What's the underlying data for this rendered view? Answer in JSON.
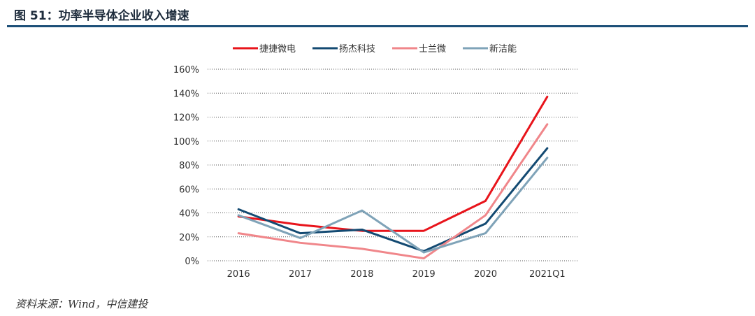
{
  "figure": {
    "title": "图 51：功率半导体企业收入增速",
    "source": "资料来源：Wind，中信建投"
  },
  "chart_data": {
    "type": "line",
    "title": "功率半导体企业收入增速",
    "xlabel": "",
    "ylabel": "",
    "categories": [
      "2016",
      "2017",
      "2018",
      "2019",
      "2020",
      "2021Q1"
    ],
    "ylim": [
      0,
      160
    ],
    "yticks": [
      0,
      20,
      40,
      60,
      80,
      100,
      120,
      140,
      160
    ],
    "ytick_labels": [
      "0%",
      "20%",
      "40%",
      "60%",
      "80%",
      "100%",
      "120%",
      "140%",
      "160%"
    ],
    "grid": "horizontal dotted",
    "legend_position": "top",
    "series": [
      {
        "name": "捷捷微电",
        "color": "#e8141b",
        "values": [
          37,
          30,
          25,
          25,
          50,
          137
        ]
      },
      {
        "name": "扬杰科技",
        "color": "#134a72",
        "values": [
          43,
          23,
          26,
          8,
          31,
          94
        ]
      },
      {
        "name": "士兰微",
        "color": "#f0868a",
        "values": [
          23,
          15,
          10,
          2,
          38,
          114
        ]
      },
      {
        "name": "新洁能",
        "color": "#7fa3b8",
        "values": [
          38,
          19,
          42,
          7,
          23,
          86
        ]
      }
    ]
  }
}
